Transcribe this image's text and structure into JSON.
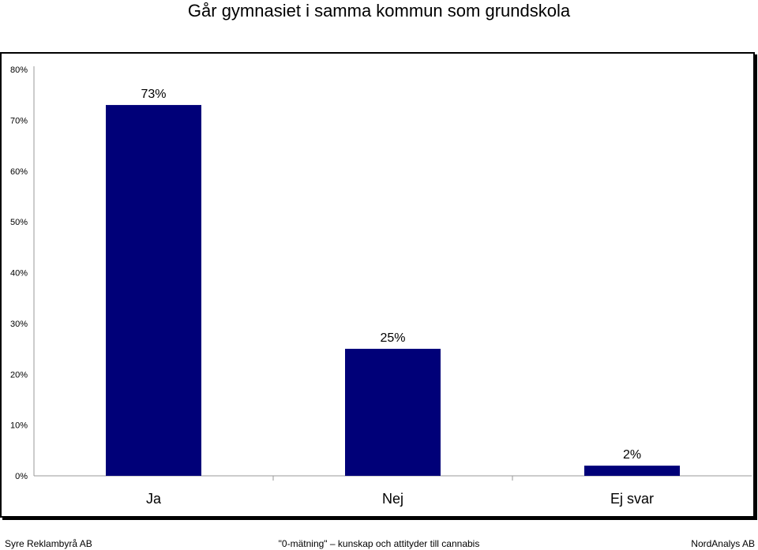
{
  "title": "Går gymnasiet i samma kommun som grundskola",
  "chart_data": {
    "type": "bar",
    "categories": [
      "Ja",
      "Nej",
      "Ej svar"
    ],
    "values": [
      73,
      25,
      2
    ],
    "value_labels": [
      "73%",
      "25%",
      "2%"
    ],
    "yticks": [
      "0%",
      "10%",
      "20%",
      "30%",
      "40%",
      "50%",
      "60%",
      "70%",
      "80%"
    ],
    "ylim": [
      0,
      80
    ],
    "grid": false,
    "bar_color": "#000078"
  },
  "footer": {
    "left": "Syre Reklambyrå AB",
    "center": "\"0-mätning\" – kunskap och attityder till cannabis",
    "right": "NordAnalys AB"
  }
}
